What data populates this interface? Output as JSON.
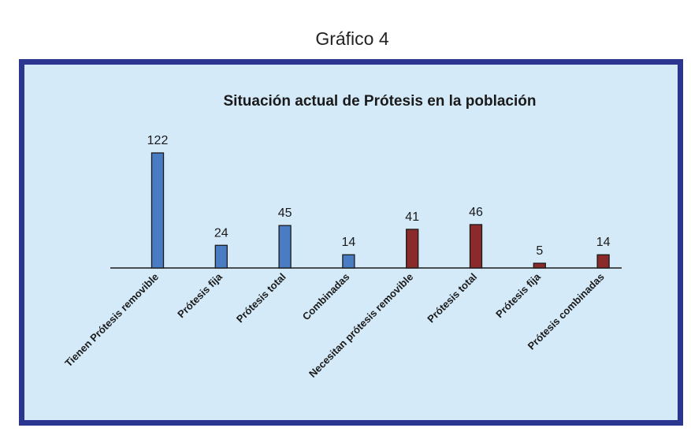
{
  "page_title": "Gráfico 4",
  "chart_data": {
    "type": "bar",
    "title": "Situación actual de Prótesis en la población",
    "xlabel": "",
    "ylabel": "",
    "ylim": [
      0,
      122
    ],
    "grid": false,
    "legend": "none",
    "categories": [
      "Tienen Prótesis removible",
      "Prótesis fija",
      "Prótesis total",
      "Combinadas",
      "Necesitan prótesis removible",
      "Prótesis total",
      "Prótesis fija",
      "Prótesis combinadas"
    ],
    "values": [
      122,
      24,
      45,
      14,
      41,
      46,
      5,
      14
    ],
    "data_labels": [
      "122",
      "24",
      "45",
      "14",
      "41",
      "46",
      "5",
      "14"
    ],
    "colors": [
      "#4a7cc4",
      "#4a7cc4",
      "#4a7cc4",
      "#4a7cc4",
      "#8b2a2a",
      "#8b2a2a",
      "#8b2a2a",
      "#8b2a2a"
    ],
    "frame_color": "#2a3690",
    "background_color": "#d4eaf8"
  }
}
